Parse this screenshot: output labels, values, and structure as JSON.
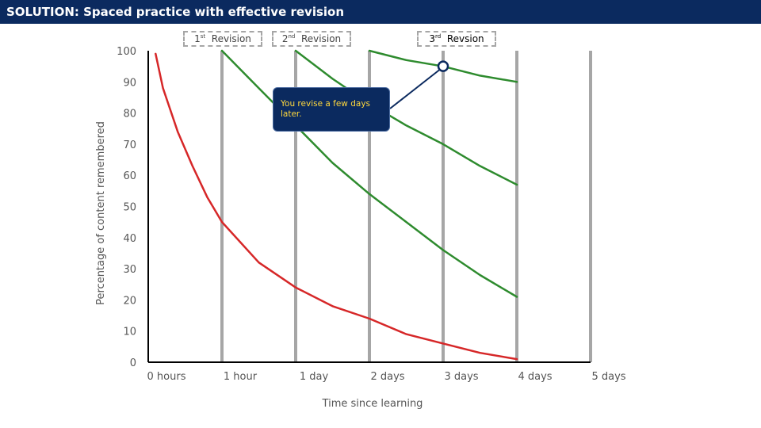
{
  "header": {
    "title": "SOLUTION: Spaced practice with effective revision"
  },
  "revisions": [
    {
      "num": "1",
      "sup": "st",
      "text": "Revision"
    },
    {
      "num": "2",
      "sup": "nd",
      "text": "Revision"
    },
    {
      "num": "3",
      "sup": "rd",
      "text": "Revsion"
    }
  ],
  "callout": {
    "text": "You revise a few days later."
  },
  "chart_data": {
    "type": "line",
    "xlabel": "Time since learning",
    "ylabel": "Percentage of content remembered",
    "categories": [
      "0 hours",
      "1 hour",
      "1 day",
      "2 days",
      "3 days",
      "4 days",
      "5 days"
    ],
    "y_ticks": [
      0,
      10,
      20,
      30,
      40,
      50,
      60,
      70,
      80,
      90,
      100
    ],
    "ylim": [
      0,
      100
    ],
    "revision_points": [
      1,
      2,
      3
    ],
    "series": [
      {
        "color": "#d62728",
        "x": [
          0.1,
          0.2,
          0.4,
          0.6,
          0.8,
          1.0,
          1.5,
          2.0,
          2.5,
          3.0,
          3.5,
          4.0,
          4.5,
          5.0
        ],
        "values": [
          99,
          88,
          74,
          63,
          53,
          45,
          32,
          24,
          18,
          14,
          9,
          6,
          3,
          1
        ]
      },
      {
        "color": "#2e8b2e",
        "x": [
          1.0,
          1.5,
          2.0,
          2.5,
          3.0,
          3.5,
          4.0,
          4.5,
          5.0
        ],
        "values": [
          100,
          88,
          76,
          64,
          54,
          45,
          36,
          28,
          21
        ]
      },
      {
        "color": "#2e8b2e",
        "x": [
          2.0,
          2.5,
          3.0,
          3.5,
          4.0,
          4.5,
          5.0
        ],
        "values": [
          100,
          91,
          83,
          76,
          70,
          63,
          57
        ]
      },
      {
        "color": "#2e8b2e",
        "x": [
          3.0,
          3.5,
          4.0,
          4.5,
          5.0
        ],
        "values": [
          100,
          97,
          95,
          92,
          90
        ]
      }
    ],
    "marker": {
      "x": 4.0,
      "y": 95,
      "color": "#0b2a5f"
    },
    "grid": false
  }
}
